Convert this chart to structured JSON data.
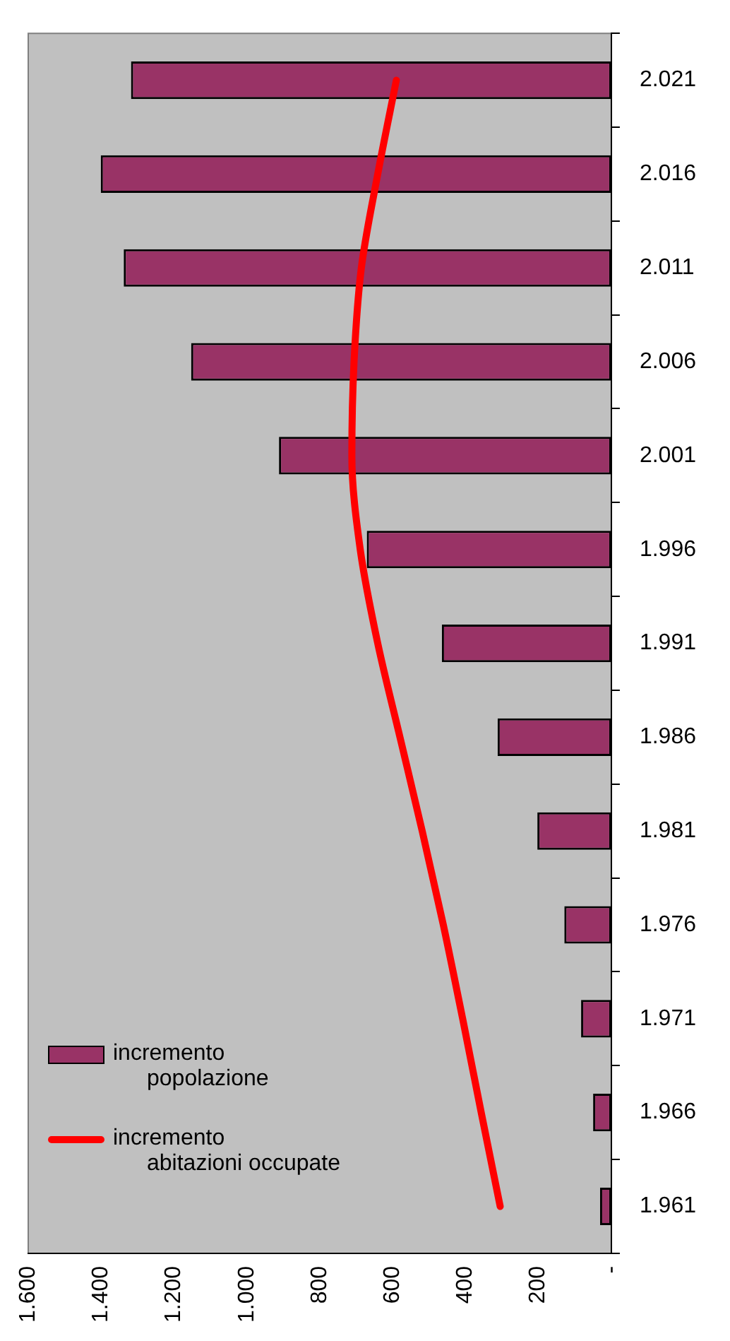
{
  "chart_data": {
    "type": "bar",
    "orientation": "horizontal",
    "categories": [
      "2.021",
      "2.016",
      "2.011",
      "2.006",
      "2.001",
      "1.996",
      "1.991",
      "1.986",
      "1.981",
      "1.976",
      "1.971",
      "1.966",
      "1.961"
    ],
    "series": [
      {
        "name": "incremento popolazione",
        "color": "#993366",
        "values": [
          1318,
          1401,
          1338,
          1153,
          912,
          671,
          465,
          312,
          203,
          129,
          83,
          50,
          31
        ]
      },
      {
        "name": "incremento abitazioni occupate",
        "type": "line",
        "color": "#ff0000",
        "values": [
          590,
          641,
          686,
          706,
          712,
          689,
          641,
          580,
          519,
          461,
          408,
          357,
          305
        ]
      }
    ],
    "xlim": [
      1600,
      0
    ],
    "xticks": [
      {
        "value": 1600,
        "label": "1.600"
      },
      {
        "value": 1400,
        "label": "1.400"
      },
      {
        "value": 1200,
        "label": "1.200"
      },
      {
        "value": 1000,
        "label": "1.000"
      },
      800,
      600,
      400,
      200,
      {
        "value": 0,
        "label": "-"
      }
    ],
    "grid": false,
    "legend": "bottom left",
    "marker": "none"
  }
}
